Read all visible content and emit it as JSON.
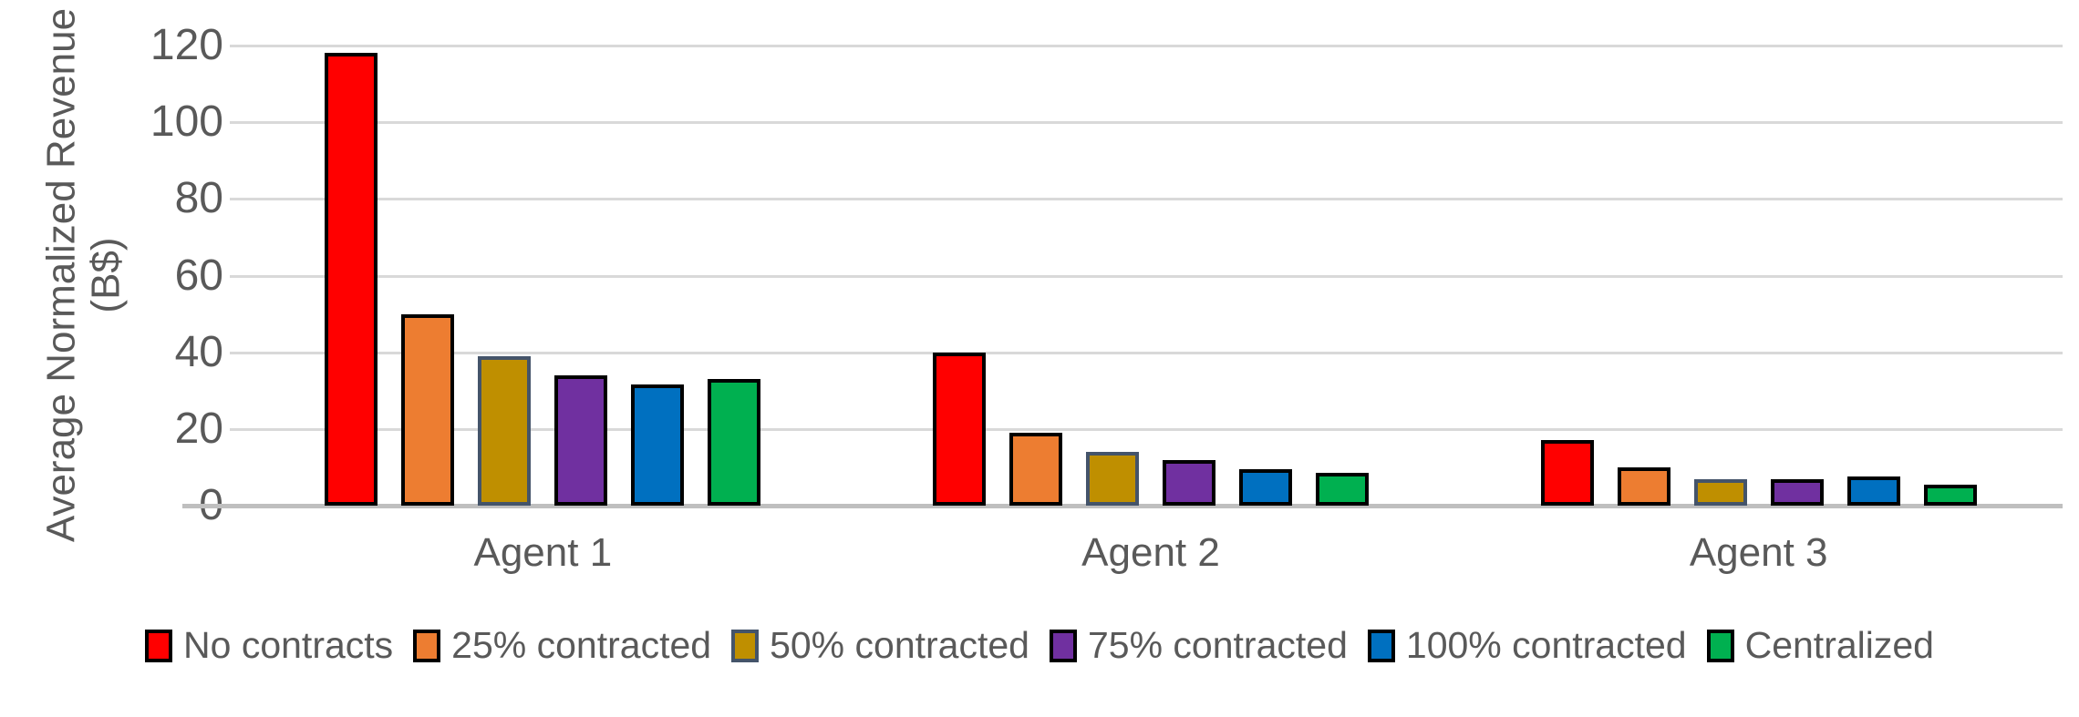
{
  "chart_data": {
    "type": "bar",
    "title": "",
    "ylabel": "Average Normalized Revenue (B$)",
    "ylabel_line1": "Average Normalized Revenue",
    "ylabel_line2": "(B$)",
    "xlabel": "",
    "categories": [
      "Agent 1",
      "Agent 2",
      "Agent 3"
    ],
    "series": [
      {
        "name": "No contracts",
        "color": "#FF0000",
        "border_color": "#000000",
        "values": [
          118,
          40,
          17
        ]
      },
      {
        "name": "25% contracted",
        "color": "#ED7D31",
        "border_color": "#000000",
        "values": [
          50,
          19,
          10
        ]
      },
      {
        "name": "50% contracted",
        "color": "#BF8F00",
        "border_color": "#44546A",
        "values": [
          39,
          14,
          7
        ]
      },
      {
        "name": "75% contracted",
        "color": "#7030A0",
        "border_color": "#000000",
        "values": [
          34,
          12,
          6.8
        ]
      },
      {
        "name": "100% contracted",
        "color": "#0070C0",
        "border_color": "#000000",
        "values": [
          31.5,
          9.5,
          7.5
        ]
      },
      {
        "name": "Centralized",
        "color": "#00B050",
        "border_color": "#000000",
        "values": [
          33,
          8.5,
          5.5
        ]
      }
    ],
    "ylim": [
      0,
      120
    ],
    "yticks": [
      120,
      100,
      80,
      60,
      40,
      20,
      0
    ],
    "grid": true,
    "gridline_color": "#D9D9D9",
    "baseline_color": "#BFBFBF",
    "text_color": "#595959",
    "legend_position": "bottom"
  }
}
